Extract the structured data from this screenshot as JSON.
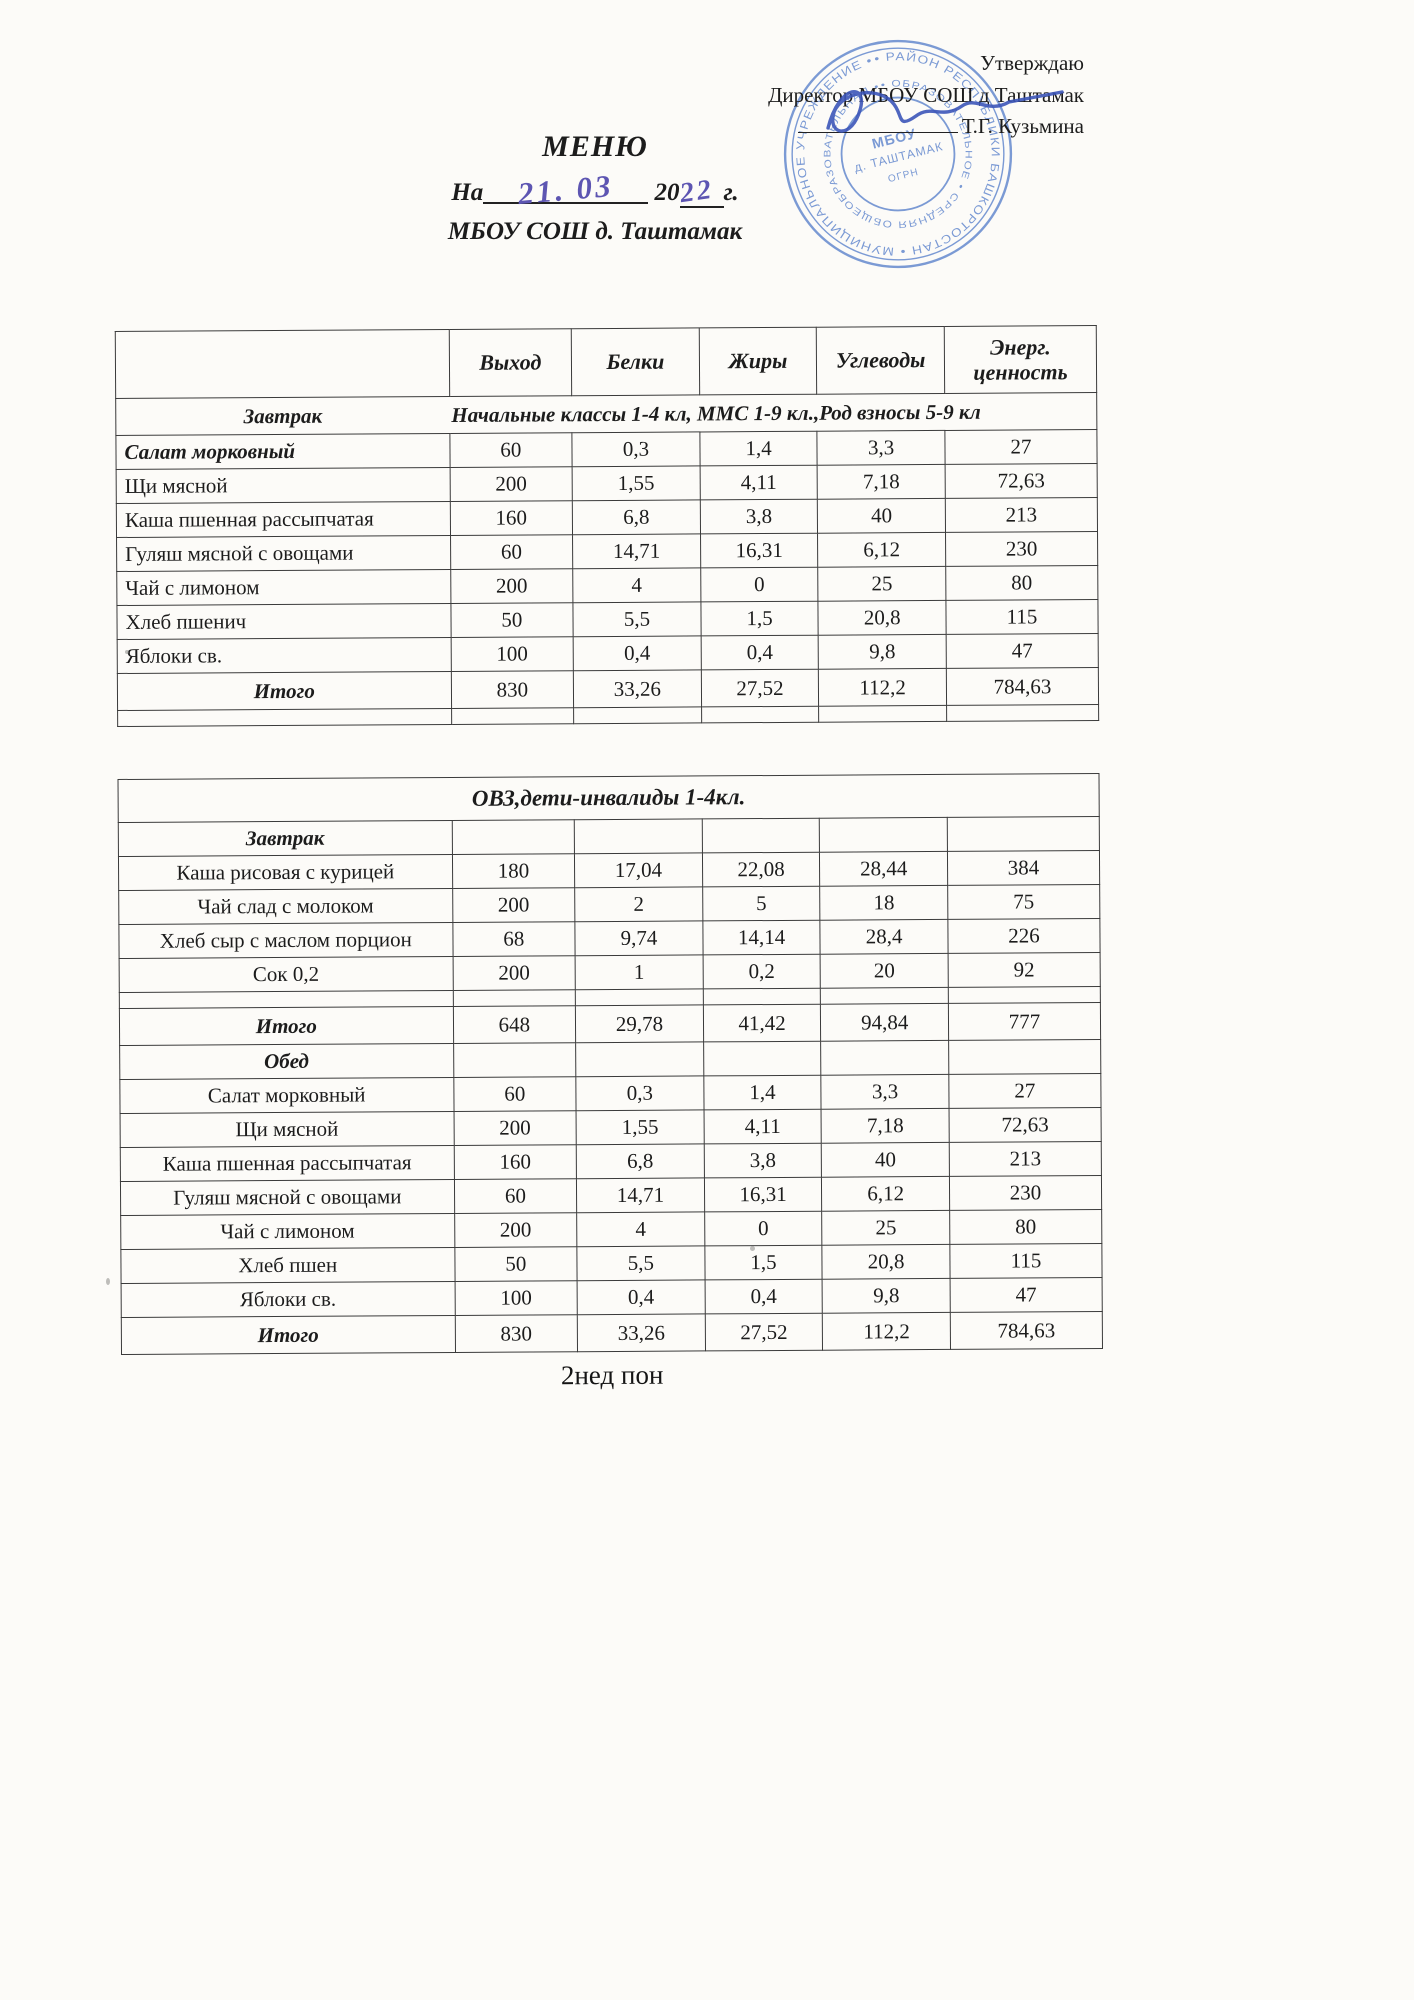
{
  "approval": {
    "approve": "Утверждаю",
    "director": "Директор МБОУ СОШ д Таштамак",
    "director_name": "Т.Г. Кузьмина"
  },
  "title": {
    "doc": "МЕНЮ",
    "date_prefix": "На",
    "date_hand": "21. 03",
    "year_print": "20",
    "year_hand": "22",
    "year_suffix": "г.",
    "school": "МБОУ СОШ д. Таштамак"
  },
  "stamp": {
    "ring_outer": "• РАЙОН РЕСПУБЛИКИ БАШКОРТОСТАН • МУНИЦИПАЛЬНОЕ УЧРЕЖДЕНИЕ •",
    "ring_inner": "• ОБРАЗОВАТЕЛЬНОЕ • СРЕДНЯЯ ОБЩЕОБРАЗОВАТЕЛЬНАЯ •",
    "center1": "МБОУ",
    "center2": "д. ТАШТАМАК",
    "center3": "ОГРН"
  },
  "colors": {
    "stamp_blue": "#5b82cc",
    "ink_blue": "#5d55b2",
    "signature_blue": "#3c55b8"
  },
  "footer": {
    "note": "2нед пон"
  },
  "tables": [
    {
      "name": "menu-table-main",
      "class": "left-names",
      "rows": [
        {
          "type": "colheads",
          "cells": [
            "",
            "Выход",
            "Белки",
            "Жиры",
            "Углеводы",
            "Энерг.\nценность"
          ]
        },
        {
          "type": "section",
          "label": "Завтрак",
          "note": "Начальные классы 1-4 кл, ММС 1-9 кл.,Род взносы 5-9 кл"
        },
        {
          "type": "dish",
          "nameStyle": "bi",
          "cells": [
            "Салат  морковный",
            "60",
            "0,3",
            "1,4",
            "3,3",
            "27"
          ]
        },
        {
          "type": "dish",
          "cells": [
            "Щи  мясной",
            "200",
            "1,55",
            "4,11",
            "7,18",
            "72,63"
          ]
        },
        {
          "type": "dish",
          "cells": [
            "Каша пшенная рассыпчатая",
            "160",
            "6,8",
            "3,8",
            "40",
            "213"
          ]
        },
        {
          "type": "dish",
          "cells": [
            "Гуляш мясной с овощами",
            "60",
            "14,71",
            "16,31",
            "6,12",
            "230"
          ]
        },
        {
          "type": "dish",
          "cells": [
            "Чай с лимоном",
            "200",
            "4",
            "0",
            "25",
            "80"
          ]
        },
        {
          "type": "dish",
          "cells": [
            "Хлеб пшенич",
            "50",
            "5,5",
            "1,5",
            "20,8",
            "115"
          ]
        },
        {
          "type": "dish",
          "cells": [
            "Яблоки св.",
            "100",
            "0,4",
            "0,4",
            "9,8",
            "47"
          ]
        },
        {
          "type": "total",
          "cells": [
            "Итого",
            "830",
            "33,26",
            "27,52",
            "112,2",
            "784,63"
          ]
        },
        {
          "type": "empty"
        }
      ]
    },
    {
      "name": "menu-table-ovz",
      "class": "center-names",
      "rows": [
        {
          "type": "title",
          "label": "ОВЗ,дети-инвалиды 1-4кл."
        },
        {
          "type": "label",
          "label": "Завтрак"
        },
        {
          "type": "dish",
          "cells": [
            "Каша рисовая с курицей",
            "180",
            "17,04",
            "22,08",
            "28,44",
            "384"
          ]
        },
        {
          "type": "dish",
          "cells": [
            "Чай слад с молоком",
            "200",
            "2",
            "5",
            "18",
            "75"
          ]
        },
        {
          "type": "dish",
          "cells": [
            "Хлеб сыр с маслом порцион",
            "68",
            "9,74",
            "14,14",
            "28,4",
            "226"
          ]
        },
        {
          "type": "dish",
          "cells": [
            "Сок 0,2",
            "200",
            "1",
            "0,2",
            "20",
            "92"
          ]
        },
        {
          "type": "empty"
        },
        {
          "type": "total",
          "cells": [
            "Итого",
            "648",
            "29,78",
            "41,42",
            "94,84",
            "777"
          ]
        },
        {
          "type": "label",
          "label": "Обед"
        },
        {
          "type": "dish",
          "cells": [
            "Салат морковный",
            "60",
            "0,3",
            "1,4",
            "3,3",
            "27"
          ]
        },
        {
          "type": "dish",
          "cells": [
            "Щи мясной",
            "200",
            "1,55",
            "4,11",
            "7,18",
            "72,63"
          ]
        },
        {
          "type": "dish",
          "cells": [
            "Каша пшенная рассыпчатая",
            "160",
            "6,8",
            "3,8",
            "40",
            "213"
          ]
        },
        {
          "type": "dish",
          "cells": [
            "Гуляш мясной с овощами",
            "60",
            "14,71",
            "16,31",
            "6,12",
            "230"
          ]
        },
        {
          "type": "dish",
          "cells": [
            "Чай с лимоном",
            "200",
            "4",
            "0",
            "25",
            "80"
          ]
        },
        {
          "type": "dish",
          "cells": [
            "Хлеб пшен",
            "50",
            "5,5",
            "1,5",
            "20,8",
            "115"
          ]
        },
        {
          "type": "dish",
          "cells": [
            "Яблоки св.",
            "100",
            "0,4",
            "0,4",
            "9,8",
            "47"
          ]
        },
        {
          "type": "total",
          "cells": [
            "Итого",
            "830",
            "33,26",
            "27,52",
            "112,2",
            "784,63"
          ]
        }
      ]
    }
  ]
}
